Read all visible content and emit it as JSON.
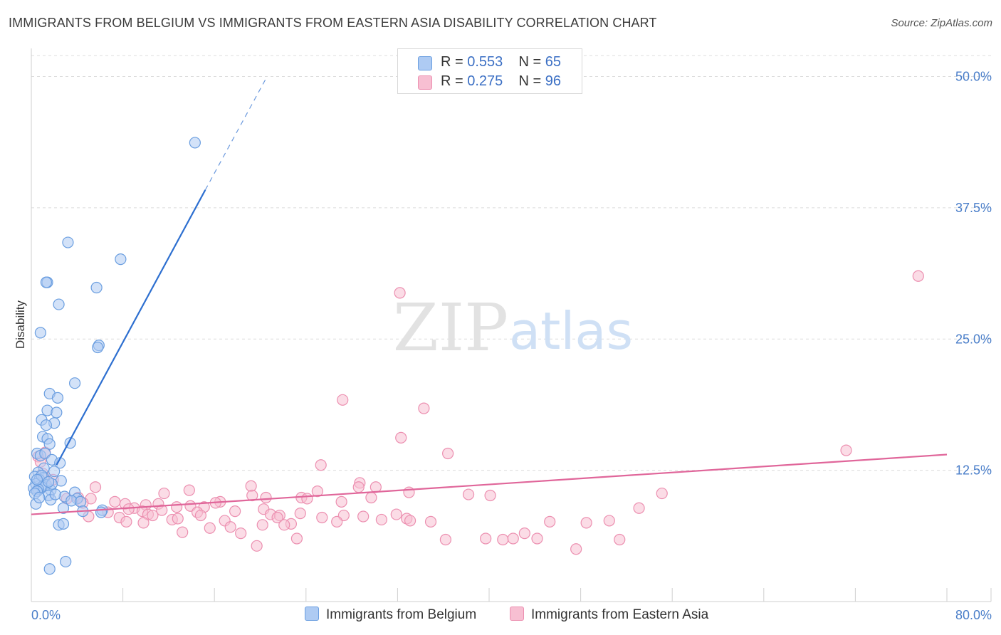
{
  "header": {
    "title": "IMMIGRANTS FROM BELGIUM VS IMMIGRANTS FROM EASTERN ASIA DISABILITY CORRELATION CHART",
    "source": "Source: ZipAtlas.com"
  },
  "legend": {
    "rows": [
      {
        "r_label": "R = ",
        "r_value": "0.553",
        "n_label": "N = ",
        "n_value": "65"
      },
      {
        "r_label": "R = ",
        "r_value": "0.275",
        "n_label": "N = ",
        "n_value": "96"
      }
    ]
  },
  "watermark": {
    "zip": "ZIP",
    "atlas": "atlas"
  },
  "colors": {
    "belgium_fill": "#aecbf3",
    "belgium_stroke": "#6a9ee0",
    "belgium_line": "#2d6fd0",
    "easia_fill": "#f7bfd2",
    "easia_stroke": "#ec8fb0",
    "easia_line": "#e0669a",
    "grid": "#dcdcdc",
    "tick_label": "#4a7ec9"
  },
  "chart_data": {
    "type": "scatter",
    "title": "IMMIGRANTS FROM BELGIUM VS IMMIGRANTS FROM EASTERN ASIA DISABILITY CORRELATION CHART",
    "xlabel": "",
    "ylabel": "Disability",
    "xlim": [
      0,
      80
    ],
    "ylim": [
      0,
      52
    ],
    "x_tick_labels": [
      {
        "value": 0,
        "label": "0.0%"
      },
      {
        "value": 80,
        "label": "80.0%"
      }
    ],
    "y_ticks": [
      {
        "value": 12.5,
        "label": "12.5%"
      },
      {
        "value": 25,
        "label": "25.0%"
      },
      {
        "value": 37.5,
        "label": "37.5%"
      },
      {
        "value": 50,
        "label": "50.0%"
      }
    ],
    "x_minor_ticks": [
      0,
      8,
      16,
      24,
      32,
      40,
      48,
      56,
      64,
      72,
      80
    ],
    "grid": true,
    "legend_position": "bottom",
    "series": [
      {
        "name": "Immigrants from Belgium",
        "trend": {
          "x": [
            2.2,
            15.2
          ],
          "y": [
            13.0,
            39.2
          ],
          "dashed_to": {
            "x": 20.6,
            "y": 50.0
          }
        },
        "points": [
          [
            14.3,
            43.7
          ],
          [
            3.2,
            34.2
          ],
          [
            7.8,
            32.6
          ],
          [
            1.4,
            30.4
          ],
          [
            1.3,
            30.4
          ],
          [
            5.7,
            29.9
          ],
          [
            2.4,
            28.3
          ],
          [
            0.8,
            25.6
          ],
          [
            5.9,
            24.4
          ],
          [
            5.8,
            24.2
          ],
          [
            3.8,
            20.8
          ],
          [
            1.6,
            19.8
          ],
          [
            2.3,
            19.4
          ],
          [
            1.4,
            18.2
          ],
          [
            2.2,
            18.0
          ],
          [
            0.9,
            17.3
          ],
          [
            2.0,
            17.0
          ],
          [
            1.3,
            16.8
          ],
          [
            1.0,
            15.7
          ],
          [
            1.4,
            15.5
          ],
          [
            3.4,
            15.1
          ],
          [
            1.6,
            15.0
          ],
          [
            0.5,
            14.1
          ],
          [
            0.8,
            13.9
          ],
          [
            1.2,
            14.1
          ],
          [
            1.8,
            13.5
          ],
          [
            2.5,
            13.2
          ],
          [
            1.1,
            12.7
          ],
          [
            2.0,
            12.4
          ],
          [
            0.6,
            12.3
          ],
          [
            0.3,
            11.9
          ],
          [
            1.1,
            11.8
          ],
          [
            0.7,
            11.6
          ],
          [
            2.6,
            11.5
          ],
          [
            0.4,
            11.2
          ],
          [
            1.0,
            11.0
          ],
          [
            1.3,
            11.1
          ],
          [
            0.9,
            10.9
          ],
          [
            0.6,
            10.7
          ],
          [
            0.2,
            10.8
          ],
          [
            1.7,
            10.6
          ],
          [
            0.5,
            10.5
          ],
          [
            3.8,
            10.4
          ],
          [
            0.3,
            10.3
          ],
          [
            1.5,
            10.1
          ],
          [
            2.9,
            10.0
          ],
          [
            4.0,
            9.8
          ],
          [
            1.7,
            9.7
          ],
          [
            3.5,
            9.6
          ],
          [
            4.3,
            9.5
          ],
          [
            0.4,
            9.3
          ],
          [
            2.8,
            8.9
          ],
          [
            4.5,
            8.6
          ],
          [
            6.2,
            8.7
          ],
          [
            6.1,
            8.5
          ],
          [
            2.4,
            7.3
          ],
          [
            2.8,
            7.4
          ],
          [
            3.0,
            3.8
          ],
          [
            1.6,
            3.1
          ],
          [
            1.8,
            11.2
          ],
          [
            0.9,
            12.0
          ],
          [
            2.1,
            10.2
          ],
          [
            0.7,
            9.9
          ],
          [
            1.5,
            11.4
          ],
          [
            0.5,
            11.6
          ]
        ]
      },
      {
        "name": "Immigrants from Eastern Asia",
        "trend": {
          "x": [
            0,
            80
          ],
          "y": [
            8.3,
            14.0
          ]
        },
        "points": [
          [
            77.5,
            31.0
          ],
          [
            32.2,
            29.4
          ],
          [
            27.2,
            19.2
          ],
          [
            34.3,
            18.4
          ],
          [
            32.3,
            15.6
          ],
          [
            71.2,
            14.4
          ],
          [
            36.4,
            14.1
          ],
          [
            25.3,
            13.0
          ],
          [
            1.2,
            14.2
          ],
          [
            0.6,
            13.8
          ],
          [
            0.8,
            13.3
          ],
          [
            1.0,
            12.2
          ],
          [
            1.9,
            11.6
          ],
          [
            28.7,
            11.3
          ],
          [
            5.6,
            10.9
          ],
          [
            28.6,
            10.9
          ],
          [
            30.1,
            10.9
          ],
          [
            19.2,
            11.0
          ],
          [
            13.8,
            10.6
          ],
          [
            25.0,
            10.5
          ],
          [
            33.0,
            10.4
          ],
          [
            11.6,
            10.3
          ],
          [
            38.2,
            10.2
          ],
          [
            19.3,
            10.1
          ],
          [
            23.6,
            9.9
          ],
          [
            29.7,
            9.9
          ],
          [
            4.1,
            9.9
          ],
          [
            5.2,
            9.8
          ],
          [
            3.1,
            9.8
          ],
          [
            24.1,
            9.8
          ],
          [
            27.1,
            9.5
          ],
          [
            16.5,
            9.5
          ],
          [
            7.3,
            9.5
          ],
          [
            4.5,
            9.4
          ],
          [
            16.1,
            9.4
          ],
          [
            11.1,
            9.3
          ],
          [
            8.2,
            9.3
          ],
          [
            10.0,
            9.2
          ],
          [
            13.9,
            9.1
          ],
          [
            12.7,
            9.0
          ],
          [
            15.1,
            9.0
          ],
          [
            9.0,
            8.9
          ],
          [
            20.3,
            8.8
          ],
          [
            8.5,
            8.8
          ],
          [
            11.4,
            8.7
          ],
          [
            17.8,
            8.6
          ],
          [
            9.7,
            8.6
          ],
          [
            14.5,
            8.5
          ],
          [
            6.7,
            8.5
          ],
          [
            23.5,
            8.4
          ],
          [
            10.2,
            8.3
          ],
          [
            20.9,
            8.3
          ],
          [
            31.9,
            8.3
          ],
          [
            21.7,
            8.2
          ],
          [
            27.3,
            8.2
          ],
          [
            10.6,
            8.2
          ],
          [
            14.8,
            8.2
          ],
          [
            5.0,
            8.1
          ],
          [
            21.5,
            8.0
          ],
          [
            7.7,
            8.0
          ],
          [
            12.3,
            7.8
          ],
          [
            25.4,
            8.0
          ],
          [
            29.0,
            8.1
          ],
          [
            12.8,
            7.9
          ],
          [
            16.9,
            7.7
          ],
          [
            26.7,
            7.6
          ],
          [
            30.6,
            7.8
          ],
          [
            8.3,
            7.6
          ],
          [
            32.8,
            7.9
          ],
          [
            22.7,
            7.4
          ],
          [
            9.8,
            7.5
          ],
          [
            22.1,
            7.3
          ],
          [
            33.1,
            7.7
          ],
          [
            34.9,
            7.6
          ],
          [
            20.2,
            7.3
          ],
          [
            48.5,
            7.5
          ],
          [
            50.5,
            7.7
          ],
          [
            55.1,
            10.3
          ],
          [
            53.1,
            8.9
          ],
          [
            40.1,
            10.1
          ],
          [
            20.5,
            9.9
          ],
          [
            45.3,
            7.6
          ],
          [
            51.4,
            5.9
          ],
          [
            17.4,
            7.1
          ],
          [
            41.2,
            5.9
          ],
          [
            42.1,
            6.0
          ],
          [
            39.7,
            6.0
          ],
          [
            43.1,
            6.5
          ],
          [
            44.2,
            6.0
          ],
          [
            47.6,
            5.0
          ],
          [
            36.2,
            5.9
          ],
          [
            19.7,
            5.3
          ],
          [
            18.3,
            6.5
          ],
          [
            23.2,
            6.0
          ],
          [
            13.2,
            6.6
          ],
          [
            15.6,
            7.0
          ]
        ]
      }
    ]
  }
}
